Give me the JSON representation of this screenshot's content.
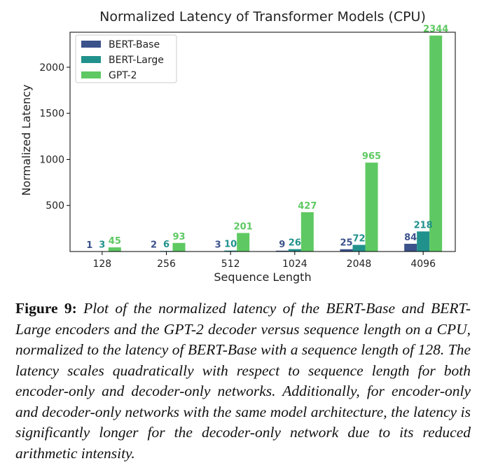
{
  "chart_data": {
    "type": "bar",
    "title": "Normalized Latency of Transformer Models (CPU)",
    "xlabel": "Sequence Length",
    "ylabel": "Normalized Latency",
    "categories": [
      "128",
      "256",
      "512",
      "1024",
      "2048",
      "4096"
    ],
    "ylim": [
      0,
      2380
    ],
    "yticks": [
      500,
      1000,
      1500,
      2000
    ],
    "grid": false,
    "legend_position": "top-left",
    "series": [
      {
        "name": "BERT-Base",
        "color": "#3b528b",
        "values": [
          1,
          2,
          3,
          9,
          25,
          84
        ]
      },
      {
        "name": "BERT-Large",
        "color": "#21918c",
        "values": [
          3,
          6,
          10,
          26,
          72,
          218
        ]
      },
      {
        "name": "GPT-2",
        "color": "#5ec962",
        "values": [
          45,
          93,
          201,
          427,
          965,
          2344
        ]
      }
    ]
  },
  "caption": {
    "lead": "Figure 9:",
    "text": "Plot of the normalized latency of the BERT-Base and BERT-Large encoders and the GPT-2 decoder versus sequence length on a CPU, normalized to the latency of BERT-Base with a sequence length of 128. The latency scales quadratically with respect to sequence length for both encoder-only and decoder-only networks. Additionally, for encoder-only and decoder-only networks with the same model architecture, the latency is significantly longer for the decoder-only network due to its reduced arithmetic intensity."
  }
}
